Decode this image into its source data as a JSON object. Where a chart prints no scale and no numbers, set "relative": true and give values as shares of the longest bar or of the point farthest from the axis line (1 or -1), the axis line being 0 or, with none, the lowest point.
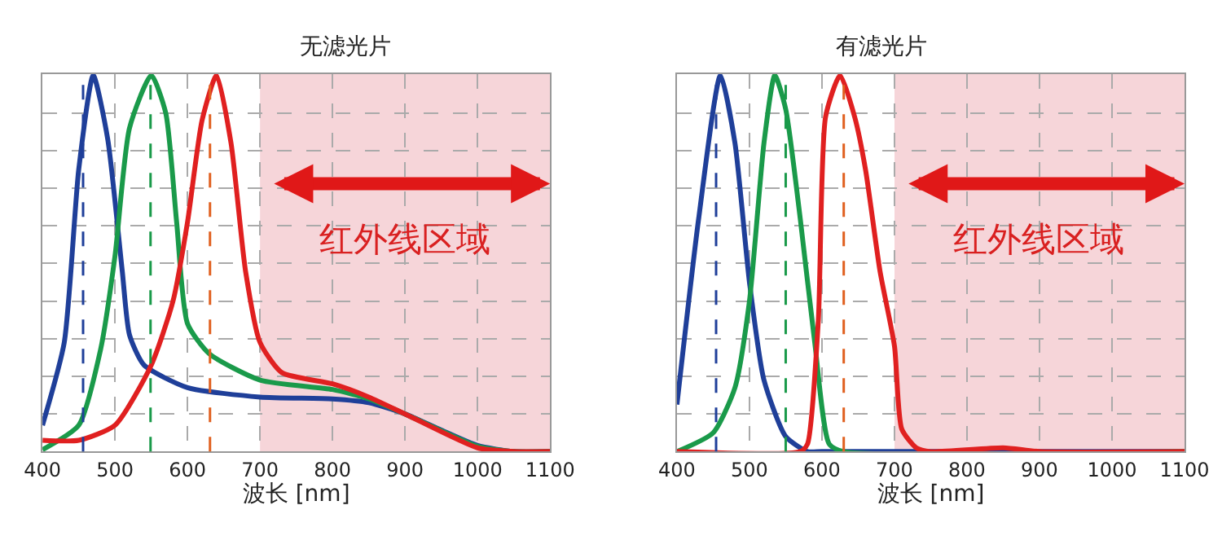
{
  "chart_data": [
    {
      "type": "line",
      "title": "无滤光片",
      "xlabel": "波长 [nm]",
      "relative": true,
      "xlim": [
        400,
        1100
      ],
      "xticks": [
        400,
        500,
        600,
        700,
        800,
        900,
        1000,
        1100
      ],
      "tick_labels": "x",
      "grid": true,
      "line_style": "solid",
      "marker": "none",
      "series": [
        {
          "color": "#1f3f99",
          "x": [
            400,
            430,
            450,
            470,
            490,
            510,
            520,
            540,
            600,
            700,
            800,
            850,
            900,
            950,
            1000,
            1050,
            1100
          ],
          "values": [
            0.07,
            0.29,
            0.75,
            1.0,
            0.83,
            0.48,
            0.31,
            0.23,
            0.17,
            0.145,
            0.14,
            0.13,
            0.1,
            0.057,
            0.016,
            0,
            0
          ]
        },
        {
          "color": "#1a9a4a",
          "x": [
            400,
            450,
            480,
            500,
            520,
            550,
            570,
            585,
            600,
            630,
            700,
            800,
            850,
            900,
            1000,
            1050,
            1100
          ],
          "values": [
            0.005,
            0.07,
            0.27,
            0.52,
            0.86,
            1.0,
            0.9,
            0.61,
            0.34,
            0.26,
            0.19,
            0.165,
            0.14,
            0.1,
            0.014,
            0,
            0
          ]
        },
        {
          "color": "#e02020",
          "x": [
            400,
            450,
            500,
            550,
            580,
            600,
            620,
            640,
            660,
            680,
            700,
            730,
            800,
            850,
            900,
            1000,
            1050,
            1100
          ],
          "values": [
            0.03,
            0.03,
            0.07,
            0.23,
            0.4,
            0.61,
            0.88,
            1.0,
            0.82,
            0.48,
            0.29,
            0.21,
            0.18,
            0.145,
            0.1,
            0.01,
            0,
            0
          ]
        }
      ],
      "ref_lines": [
        {
          "axis": "x",
          "value": 456,
          "color": "#1f3f99",
          "line_style": "dashed"
        },
        {
          "axis": "x",
          "value": 549,
          "color": "#1a9a4a",
          "line_style": "dashed"
        },
        {
          "axis": "x",
          "value": 631,
          "color": "#e06020",
          "line_style": "dashed"
        }
      ],
      "bands": [
        {
          "axis": "x",
          "from": 700,
          "to": 1100,
          "label": "红外线区域",
          "color": "#f6d5d9"
        }
      ]
    },
    {
      "type": "line",
      "title": "有滤光片",
      "xlabel": "波长 [nm]",
      "relative": true,
      "xlim": [
        400,
        1100
      ],
      "xticks": [
        400,
        500,
        600,
        700,
        800,
        900,
        1000,
        1100
      ],
      "tick_labels": "x",
      "grid": true,
      "line_style": "solid",
      "marker": "none",
      "series": [
        {
          "color": "#1f3f99",
          "x": [
            400,
            430,
            460,
            480,
            500,
            520,
            550,
            580,
            600,
            1100
          ],
          "values": [
            0.125,
            0.62,
            1.0,
            0.82,
            0.45,
            0.19,
            0.04,
            0,
            0,
            0
          ]
        },
        {
          "color": "#1a9a4a",
          "x": [
            400,
            450,
            480,
            500,
            520,
            535,
            550,
            570,
            590,
            610,
            630,
            1100
          ],
          "values": [
            0,
            0.05,
            0.17,
            0.4,
            0.82,
            1.0,
            0.91,
            0.62,
            0.29,
            0.02,
            0,
            0
          ]
        },
        {
          "color": "#e02020",
          "x": [
            400,
            570,
            580,
            595,
            605,
            625,
            645,
            660,
            680,
            700,
            710,
            730,
            750,
            850,
            900,
            1100
          ],
          "values": [
            0,
            0,
            0.02,
            0.35,
            0.89,
            1.0,
            0.89,
            0.75,
            0.48,
            0.28,
            0.06,
            0.01,
            0,
            0.01,
            0,
            0
          ]
        }
      ],
      "ref_lines": [
        {
          "axis": "x",
          "value": 454,
          "color": "#1f3f99",
          "line_style": "dashed"
        },
        {
          "axis": "x",
          "value": 550,
          "color": "#1a9a4a",
          "line_style": "dashed"
        },
        {
          "axis": "x",
          "value": 630,
          "color": "#e06020",
          "line_style": "dashed"
        }
      ],
      "bands": [
        {
          "axis": "x",
          "from": 700,
          "to": 1100,
          "label": "红外线区域",
          "color": "#f6d5d9"
        }
      ]
    }
  ]
}
